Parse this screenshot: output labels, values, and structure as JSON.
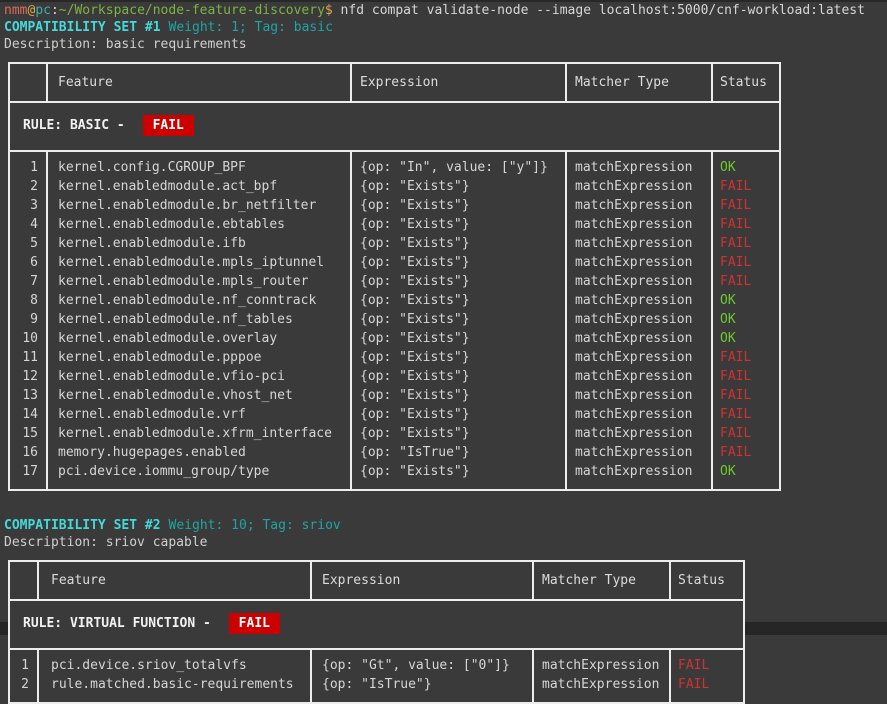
{
  "colors": {
    "background": "#3a3a3a",
    "status_ok": "#6cc82e",
    "status_fail": "#d03232",
    "badge_bg": "#cc0000",
    "accent_cyan": "#45d9d9",
    "prompt_user": "#dd6a5e",
    "prompt_symbol": "#dfa748",
    "prompt_host": "#3cafa9",
    "prompt_path": "#7cb342"
  },
  "prompt": {
    "user": "nmm",
    "at": "@",
    "host": "pc",
    "colon": ":",
    "path": "~/Workspace/node-feature-discovery",
    "dollar": "$",
    "command": " nfd compat validate-node --image localhost:5000/cnf-workload:latest"
  },
  "sets": [
    {
      "title": "COMPATIBILITY SET #1",
      "meta": "Weight: 1; Tag: basic",
      "description": "Description: basic requirements",
      "rule": {
        "label": "RULE: BASIC - ",
        "status": "FAIL"
      },
      "columns": [
        "Feature",
        "Expression",
        "Matcher Type",
        "Status"
      ],
      "rows": [
        [
          "1",
          "kernel.config.CGROUP_BPF",
          "{op: \"In\", value: [\"y\"]}",
          "matchExpression",
          "OK"
        ],
        [
          "2",
          "kernel.enabledmodule.act_bpf",
          "{op: \"Exists\"}",
          "matchExpression",
          "FAIL"
        ],
        [
          "3",
          "kernel.enabledmodule.br_netfilter",
          "{op: \"Exists\"}",
          "matchExpression",
          "FAIL"
        ],
        [
          "4",
          "kernel.enabledmodule.ebtables",
          "{op: \"Exists\"}",
          "matchExpression",
          "FAIL"
        ],
        [
          "5",
          "kernel.enabledmodule.ifb",
          "{op: \"Exists\"}",
          "matchExpression",
          "FAIL"
        ],
        [
          "6",
          "kernel.enabledmodule.mpls_iptunnel",
          "{op: \"Exists\"}",
          "matchExpression",
          "FAIL"
        ],
        [
          "7",
          "kernel.enabledmodule.mpls_router",
          "{op: \"Exists\"}",
          "matchExpression",
          "FAIL"
        ],
        [
          "8",
          "kernel.enabledmodule.nf_conntrack",
          "{op: \"Exists\"}",
          "matchExpression",
          "OK"
        ],
        [
          "9",
          "kernel.enabledmodule.nf_tables",
          "{op: \"Exists\"}",
          "matchExpression",
          "OK"
        ],
        [
          "10",
          "kernel.enabledmodule.overlay",
          "{op: \"Exists\"}",
          "matchExpression",
          "OK"
        ],
        [
          "11",
          "kernel.enabledmodule.pppoe",
          "{op: \"Exists\"}",
          "matchExpression",
          "FAIL"
        ],
        [
          "12",
          "kernel.enabledmodule.vfio-pci",
          "{op: \"Exists\"}",
          "matchExpression",
          "FAIL"
        ],
        [
          "13",
          "kernel.enabledmodule.vhost_net",
          "{op: \"Exists\"}",
          "matchExpression",
          "FAIL"
        ],
        [
          "14",
          "kernel.enabledmodule.vrf",
          "{op: \"Exists\"}",
          "matchExpression",
          "FAIL"
        ],
        [
          "15",
          "kernel.enabledmodule.xfrm_interface",
          "{op: \"Exists\"}",
          "matchExpression",
          "FAIL"
        ],
        [
          "16",
          "memory.hugepages.enabled",
          "{op: \"IsTrue\"}",
          "matchExpression",
          "FAIL"
        ],
        [
          "17",
          "pci.device.iommu_group/type",
          "{op: \"Exists\"}",
          "matchExpression",
          "OK"
        ]
      ]
    },
    {
      "title": "COMPATIBILITY SET #2",
      "meta": "Weight: 10; Tag: sriov",
      "description": "Description: sriov capable",
      "rule": {
        "label": "RULE: VIRTUAL FUNCTION - ",
        "status": "FAIL"
      },
      "columns": [
        "Feature",
        "Expression",
        "Matcher Type",
        "Status"
      ],
      "rows": [
        [
          "1",
          "pci.device.sriov_totalvfs",
          "{op: \"Gt\", value: [\"0\"]}",
          "matchExpression",
          "FAIL"
        ],
        [
          "2",
          "rule.matched.basic-requirements",
          "{op: \"IsTrue\"}",
          "matchExpression",
          "FAIL"
        ]
      ]
    }
  ]
}
